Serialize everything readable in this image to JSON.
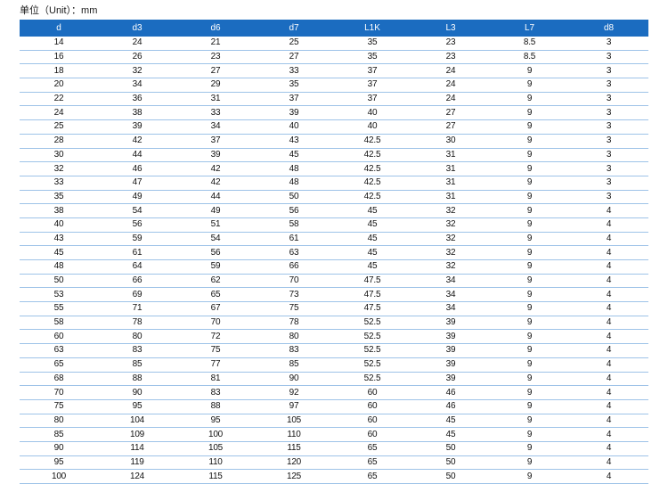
{
  "unit_label": "单位（Unit）：mm",
  "colors": {
    "header_bg": "#1b6cc0",
    "header_text": "#ffffff",
    "row_divider": "#9ec3e8"
  },
  "table": {
    "headers": [
      "d",
      "d3",
      "d6",
      "d7",
      "L1K",
      "L3",
      "L7",
      "d8"
    ],
    "rows": [
      [
        "14",
        "24",
        "21",
        "25",
        "35",
        "23",
        "8.5",
        "3"
      ],
      [
        "16",
        "26",
        "23",
        "27",
        "35",
        "23",
        "8.5",
        "3"
      ],
      [
        "18",
        "32",
        "27",
        "33",
        "37",
        "24",
        "9",
        "3"
      ],
      [
        "20",
        "34",
        "29",
        "35",
        "37",
        "24",
        "9",
        "3"
      ],
      [
        "22",
        "36",
        "31",
        "37",
        "37",
        "24",
        "9",
        "3"
      ],
      [
        "24",
        "38",
        "33",
        "39",
        "40",
        "27",
        "9",
        "3"
      ],
      [
        "25",
        "39",
        "34",
        "40",
        "40",
        "27",
        "9",
        "3"
      ],
      [
        "28",
        "42",
        "37",
        "43",
        "42.5",
        "30",
        "9",
        "3"
      ],
      [
        "30",
        "44",
        "39",
        "45",
        "42.5",
        "31",
        "9",
        "3"
      ],
      [
        "32",
        "46",
        "42",
        "48",
        "42.5",
        "31",
        "9",
        "3"
      ],
      [
        "33",
        "47",
        "42",
        "48",
        "42.5",
        "31",
        "9",
        "3"
      ],
      [
        "35",
        "49",
        "44",
        "50",
        "42.5",
        "31",
        "9",
        "3"
      ],
      [
        "38",
        "54",
        "49",
        "56",
        "45",
        "32",
        "9",
        "4"
      ],
      [
        "40",
        "56",
        "51",
        "58",
        "45",
        "32",
        "9",
        "4"
      ],
      [
        "43",
        "59",
        "54",
        "61",
        "45",
        "32",
        "9",
        "4"
      ],
      [
        "45",
        "61",
        "56",
        "63",
        "45",
        "32",
        "9",
        "4"
      ],
      [
        "48",
        "64",
        "59",
        "66",
        "45",
        "32",
        "9",
        "4"
      ],
      [
        "50",
        "66",
        "62",
        "70",
        "47.5",
        "34",
        "9",
        "4"
      ],
      [
        "53",
        "69",
        "65",
        "73",
        "47.5",
        "34",
        "9",
        "4"
      ],
      [
        "55",
        "71",
        "67",
        "75",
        "47.5",
        "34",
        "9",
        "4"
      ],
      [
        "58",
        "78",
        "70",
        "78",
        "52.5",
        "39",
        "9",
        "4"
      ],
      [
        "60",
        "80",
        "72",
        "80",
        "52.5",
        "39",
        "9",
        "4"
      ],
      [
        "63",
        "83",
        "75",
        "83",
        "52.5",
        "39",
        "9",
        "4"
      ],
      [
        "65",
        "85",
        "77",
        "85",
        "52.5",
        "39",
        "9",
        "4"
      ],
      [
        "68",
        "88",
        "81",
        "90",
        "52.5",
        "39",
        "9",
        "4"
      ],
      [
        "70",
        "90",
        "83",
        "92",
        "60",
        "46",
        "9",
        "4"
      ],
      [
        "75",
        "95",
        "88",
        "97",
        "60",
        "46",
        "9",
        "4"
      ],
      [
        "80",
        "104",
        "95",
        "105",
        "60",
        "45",
        "9",
        "4"
      ],
      [
        "85",
        "109",
        "100",
        "110",
        "60",
        "45",
        "9",
        "4"
      ],
      [
        "90",
        "114",
        "105",
        "115",
        "65",
        "50",
        "9",
        "4"
      ],
      [
        "95",
        "119",
        "110",
        "120",
        "65",
        "50",
        "9",
        "4"
      ],
      [
        "100",
        "124",
        "115",
        "125",
        "65",
        "50",
        "9",
        "4"
      ]
    ]
  }
}
